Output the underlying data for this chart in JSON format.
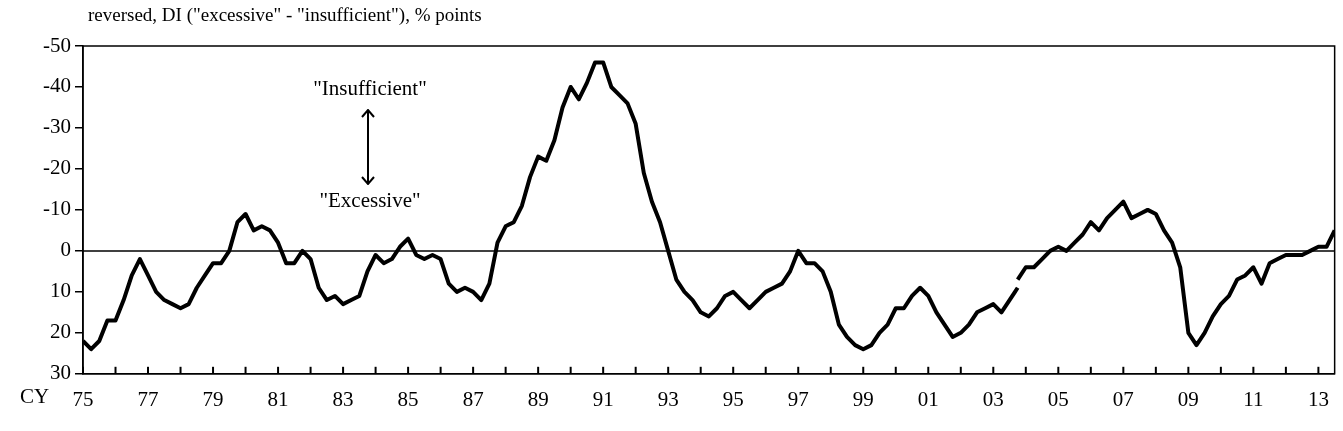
{
  "chart_data": {
    "type": "line",
    "ylabel": "reversed, DI (\"excessive\" - \"insufficient\"), % points",
    "xlabel": "CY",
    "annotations": [
      "\"Insufficient\"",
      "\"Excessive\""
    ],
    "xlim": [
      1975,
      2013.5
    ],
    "xticks": [
      {
        "value": 1975,
        "label": "75"
      },
      {
        "value": 1976,
        "label": null
      },
      {
        "value": 1977,
        "label": "77"
      },
      {
        "value": 1978,
        "label": null
      },
      {
        "value": 1979,
        "label": "79"
      },
      {
        "value": 1980,
        "label": null
      },
      {
        "value": 1981,
        "label": "81"
      },
      {
        "value": 1982,
        "label": null
      },
      {
        "value": 1983,
        "label": "83"
      },
      {
        "value": 1984,
        "label": null
      },
      {
        "value": 1985,
        "label": "85"
      },
      {
        "value": 1986,
        "label": null
      },
      {
        "value": 1987,
        "label": "87"
      },
      {
        "value": 1988,
        "label": null
      },
      {
        "value": 1989,
        "label": "89"
      },
      {
        "value": 1990,
        "label": null
      },
      {
        "value": 1991,
        "label": "91"
      },
      {
        "value": 1992,
        "label": null
      },
      {
        "value": 1993,
        "label": "93"
      },
      {
        "value": 1994,
        "label": null
      },
      {
        "value": 1995,
        "label": "95"
      },
      {
        "value": 1996,
        "label": null
      },
      {
        "value": 1997,
        "label": "97"
      },
      {
        "value": 1998,
        "label": null
      },
      {
        "value": 1999,
        "label": "99"
      },
      {
        "value": 2000,
        "label": null
      },
      {
        "value": 2001,
        "label": "01"
      },
      {
        "value": 2002,
        "label": null
      },
      {
        "value": 2003,
        "label": "03"
      },
      {
        "value": 2004,
        "label": null
      },
      {
        "value": 2005,
        "label": "05"
      },
      {
        "value": 2006,
        "label": null
      },
      {
        "value": 2007,
        "label": "07"
      },
      {
        "value": 2008,
        "label": null
      },
      {
        "value": 2009,
        "label": "09"
      },
      {
        "value": 2010,
        "label": null
      },
      {
        "value": 2011,
        "label": "11"
      },
      {
        "value": 2012,
        "label": null
      },
      {
        "value": 2013,
        "label": "13"
      }
    ],
    "ylim": [
      30,
      -50
    ],
    "yticks": [
      -50,
      -40,
      -30,
      -20,
      -10,
      0,
      10,
      20,
      30
    ],
    "grid": false,
    "legend": false,
    "marker": "none",
    "line_style": "solid",
    "ref_lines": [
      {
        "axis": "y",
        "value": 0,
        "color": "#000000"
      }
    ],
    "series": [
      {
        "color": "#000000",
        "x": [
          1975,
          1975.25,
          1975.5,
          1975.75,
          1976,
          1976.25,
          1976.5,
          1976.75,
          1977,
          1977.25,
          1977.5,
          1977.75,
          1978,
          1978.25,
          1978.5,
          1978.75,
          1979,
          1979.25,
          1979.5,
          1979.75,
          1980,
          1980.25,
          1980.5,
          1980.75,
          1981,
          1981.25,
          1981.5,
          1981.75,
          1982,
          1982.25,
          1982.5,
          1982.75,
          1983,
          1983.25,
          1983.5,
          1983.75,
          1984,
          1984.25,
          1984.5,
          1984.75,
          1985,
          1985.25,
          1985.5,
          1985.75,
          1986,
          1986.25,
          1986.5,
          1986.75,
          1987,
          1987.25,
          1987.5,
          1987.75,
          1988,
          1988.25,
          1988.5,
          1988.75,
          1989,
          1989.25,
          1989.5,
          1989.75,
          1990,
          1990.25,
          1990.5,
          1990.75,
          1991,
          1991.25,
          1991.5,
          1991.75,
          1992,
          1992.25,
          1992.5,
          1992.75,
          1993,
          1993.25,
          1993.5,
          1993.75,
          1994,
          1994.25,
          1994.5,
          1994.75,
          1995,
          1995.25,
          1995.5,
          1995.75,
          1996,
          1996.25,
          1996.5,
          1996.75,
          1997,
          1997.25,
          1997.5,
          1997.75,
          1998,
          1998.25,
          1998.5,
          1998.75,
          1999,
          1999.25,
          1999.5,
          1999.75,
          2000,
          2000.25,
          2000.5,
          2000.75,
          2001,
          2001.25,
          2001.5,
          2001.75,
          2002,
          2002.25,
          2002.5,
          2002.75,
          2003,
          2003.25,
          2003.5,
          2003.75
        ],
        "values": [
          22,
          24,
          22,
          17,
          17,
          12,
          6,
          2,
          6,
          10,
          12,
          13,
          14,
          13,
          9,
          6,
          3,
          3,
          0,
          -7,
          -9,
          -5,
          -6,
          -5,
          -2,
          3,
          3,
          0,
          2,
          9,
          12,
          11,
          13,
          12,
          11,
          5,
          1,
          3,
          2,
          -1,
          -3,
          1,
          2,
          1,
          2,
          8,
          10,
          9,
          10,
          12,
          8,
          -2,
          -6,
          -7,
          -11,
          -18,
          -23,
          -22,
          -27,
          -35,
          -40,
          -37,
          -41,
          -46,
          -46,
          -40,
          -38,
          -36,
          -31,
          -19,
          -12,
          -7,
          0,
          7,
          10,
          12,
          15,
          16,
          14,
          11,
          10,
          12,
          14,
          12,
          10,
          9,
          8,
          5,
          0,
          3,
          3,
          5,
          10,
          18,
          21,
          23,
          24,
          23,
          20,
          18,
          14,
          14,
          11,
          9,
          11,
          15,
          18,
          21,
          20,
          18,
          15,
          14,
          13,
          15,
          12,
          9
        ]
      },
      {
        "color": "#000000",
        "x": [
          2003.75,
          2004,
          2004.25,
          2004.5,
          2004.75,
          2005,
          2005.25,
          2005.5,
          2005.75,
          2006,
          2006.25,
          2006.5,
          2006.75,
          2007,
          2007.25,
          2007.5,
          2007.75,
          2008,
          2008.25,
          2008.5,
          2008.75,
          2009,
          2009.25,
          2009.5,
          2009.75,
          2010,
          2010.25,
          2010.5,
          2010.75,
          2011,
          2011.25,
          2011.5,
          2011.75,
          2012,
          2012.25,
          2012.5,
          2012.75,
          2013,
          2013.25,
          2013.5
        ],
        "values": [
          7,
          4,
          4,
          2,
          0,
          -1,
          0,
          -2,
          -4,
          -7,
          -5,
          -8,
          -10,
          -12,
          -8,
          -9,
          -10,
          -9,
          -5,
          -2,
          4,
          20,
          23,
          20,
          16,
          13,
          11,
          7,
          6,
          4,
          8,
          3,
          2,
          1,
          1,
          1,
          0,
          -1,
          -1,
          -5
        ]
      }
    ]
  }
}
